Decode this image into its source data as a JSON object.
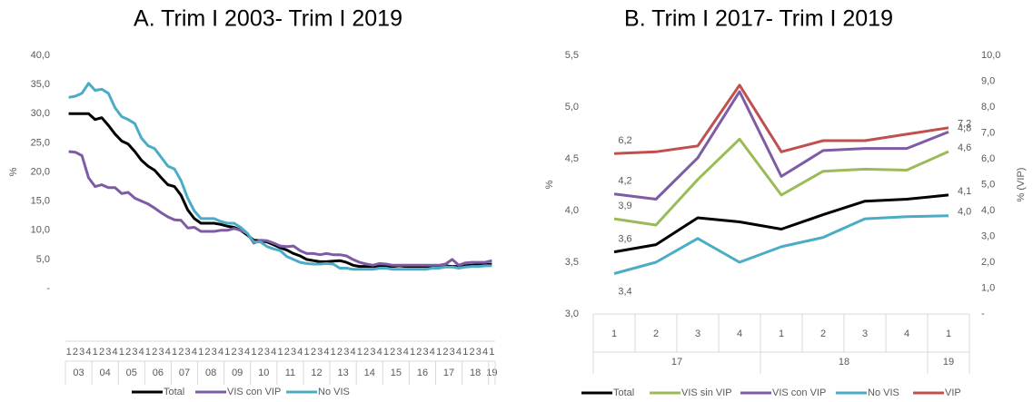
{
  "chart_data": [
    {
      "type": "line",
      "title": "A.  Trim I 2003- Trim I 2019",
      "ylabel": "%",
      "categories": [
        "1",
        "2",
        "3",
        "4",
        "1",
        "2",
        "3",
        "4",
        "1",
        "2",
        "3",
        "4",
        "1",
        "2",
        "3",
        "4",
        "1",
        "2",
        "3",
        "4",
        "1",
        "2",
        "3",
        "4",
        "1",
        "2",
        "3",
        "4",
        "1",
        "2",
        "3",
        "4",
        "1",
        "2",
        "3",
        "4",
        "1",
        "2",
        "3",
        "4",
        "1",
        "2",
        "3",
        "4",
        "1",
        "2",
        "3",
        "4",
        "1",
        "2",
        "3",
        "4",
        "1",
        "2",
        "3",
        "4",
        "1",
        "2",
        "3",
        "4",
        "1",
        "2",
        "3",
        "4",
        "1"
      ],
      "year_labels": [
        "03",
        "04",
        "05",
        "06",
        "07",
        "08",
        "09",
        "10",
        "11",
        "12",
        "13",
        "14",
        "15",
        "16",
        "17",
        "18",
        "19"
      ],
      "series": [
        {
          "name": "Total",
          "color": "#000000",
          "values": [
            30,
            30,
            30,
            30,
            29,
            29.3,
            28,
            26.5,
            25.3,
            24.8,
            23.5,
            22,
            21,
            20.3,
            19,
            17.8,
            17.5,
            16,
            13.5,
            12,
            11.2,
            11.2,
            11.2,
            11,
            10.7,
            10.5,
            10,
            9.2,
            8.3,
            8.2,
            8,
            7.5,
            7,
            6.6,
            6,
            5.6,
            5,
            4.8,
            4.6,
            4.6,
            4.7,
            4.8,
            4.5,
            4,
            3.8,
            3.8,
            3.8,
            3.8,
            3.8,
            3.8,
            3.9,
            3.8,
            3.8,
            3.8,
            3.8,
            3.8,
            3.8,
            3.9,
            3.8,
            3.8,
            3.9,
            4,
            4.1,
            4.1,
            4.2
          ]
        },
        {
          "name": "VIS con VIP",
          "color": "#7e5ca5",
          "values": [
            23.5,
            23.4,
            22.8,
            19,
            17.5,
            17.8,
            17.3,
            17.3,
            16.3,
            16.5,
            15.5,
            15,
            14.5,
            13.8,
            13,
            12.3,
            11.8,
            11.7,
            10.4,
            10.5,
            9.8,
            9.8,
            9.8,
            10,
            10,
            10.3,
            10,
            9.5,
            7.8,
            8.3,
            8.2,
            7.8,
            7.3,
            7.2,
            7.3,
            6.5,
            6,
            6,
            5.8,
            6,
            5.8,
            5.8,
            5.6,
            5,
            4.5,
            4.2,
            4,
            4.3,
            4.2,
            4,
            4,
            4,
            4,
            4,
            4,
            4,
            4,
            4.2,
            5,
            4,
            4.4,
            4.5,
            4.5,
            4.5,
            4.8
          ]
        },
        {
          "name": "No VIS",
          "color": "#4bacc6",
          "values": [
            32.8,
            33,
            33.5,
            35.2,
            34,
            34.2,
            33.5,
            31,
            29.5,
            29,
            28.3,
            25.8,
            24.5,
            24,
            22.5,
            21,
            20.5,
            18.5,
            15.5,
            13.3,
            12,
            12,
            12,
            11.5,
            11.2,
            11.2,
            10.5,
            9.5,
            8,
            8,
            7.2,
            6.8,
            6.5,
            5.5,
            5,
            4.5,
            4.3,
            4.2,
            4.2,
            4.3,
            4.2,
            3.5,
            3.5,
            3.3,
            3.3,
            3.3,
            3.3,
            3.5,
            3.5,
            3.3,
            3.3,
            3.3,
            3.3,
            3.3,
            3.3,
            3.5,
            3.5,
            3.7,
            3.7,
            3.5,
            3.7,
            3.8,
            3.8,
            3.9,
            3.9
          ]
        }
      ],
      "ylim": [
        0,
        40
      ],
      "yticks": [
        {
          "value": 0,
          "label": "-"
        },
        {
          "value": 5,
          "label": "5,0"
        },
        {
          "value": 10,
          "label": "10,0"
        },
        {
          "value": 15,
          "label": "15,0"
        },
        {
          "value": 20,
          "label": "20,0"
        },
        {
          "value": 25,
          "label": "25,0"
        },
        {
          "value": 30,
          "label": "30,0"
        },
        {
          "value": 35,
          "label": "35,0"
        },
        {
          "value": 40,
          "label": "40,0"
        }
      ],
      "legend": "bottom"
    },
    {
      "type": "line",
      "title": "B.  Trim I 2017- Trim I 2019",
      "ylabel": "%",
      "y2label": "% (VIP)",
      "categories": [
        "1",
        "2",
        "3",
        "4",
        "1",
        "2",
        "3",
        "4",
        "1"
      ],
      "year_labels": [
        "17",
        "18",
        "19"
      ],
      "series": [
        {
          "name": "Total",
          "color": "#000000",
          "values": [
            3.6,
            3.67,
            3.93,
            3.89,
            3.82,
            3.96,
            4.09,
            4.11,
            4.15
          ],
          "value_labels": [
            "3,6",
            null,
            null,
            null,
            null,
            null,
            null,
            null,
            "4,1"
          ]
        },
        {
          "name": "VIS sin VIP",
          "color": "#9bbb59",
          "values": [
            3.92,
            3.86,
            4.3,
            4.69,
            4.15,
            4.38,
            4.4,
            4.39,
            4.57
          ],
          "value_labels": [
            "3,9",
            null,
            null,
            null,
            null,
            null,
            null,
            null,
            "4,6"
          ]
        },
        {
          "name": "VIS con VIP",
          "color": "#7e5ca5",
          "values": [
            4.16,
            4.11,
            4.51,
            5.15,
            4.33,
            4.58,
            4.6,
            4.6,
            4.76
          ],
          "value_labels": [
            "4,2",
            null,
            null,
            null,
            null,
            null,
            null,
            null,
            "4,8"
          ]
        },
        {
          "name": "No VIS",
          "color": "#4bacc6",
          "values": [
            3.39,
            3.5,
            3.73,
            3.5,
            3.65,
            3.74,
            3.92,
            3.94,
            3.95
          ],
          "value_labels": [
            "3,4",
            null,
            null,
            null,
            null,
            null,
            null,
            null,
            "4,0"
          ]
        },
        {
          "name": "VIP",
          "color": "#c0504d",
          "axis": "y2",
          "values": [
            6.2,
            6.27,
            6.5,
            8.85,
            6.27,
            6.7,
            6.7,
            6.95,
            7.2
          ],
          "value_labels": [
            "6,2",
            null,
            null,
            null,
            null,
            null,
            null,
            null,
            "7,2"
          ]
        }
      ],
      "ylim": [
        3,
        5.5
      ],
      "yticks": [
        {
          "value": 3,
          "label": "3,0"
        },
        {
          "value": 3.5,
          "label": "3,5"
        },
        {
          "value": 4,
          "label": "4,0"
        },
        {
          "value": 4.5,
          "label": "4,5"
        },
        {
          "value": 5,
          "label": "5,0"
        },
        {
          "value": 5.5,
          "label": "5,5"
        }
      ],
      "y2lim": [
        0,
        10
      ],
      "y2ticks": [
        {
          "value": 0,
          "label": "-"
        },
        {
          "value": 1,
          "label": "1,0"
        },
        {
          "value": 2,
          "label": "2,0"
        },
        {
          "value": 3,
          "label": "3,0"
        },
        {
          "value": 4,
          "label": "4,0"
        },
        {
          "value": 5,
          "label": "5,0"
        },
        {
          "value": 6,
          "label": "6,0"
        },
        {
          "value": 7,
          "label": "7,0"
        },
        {
          "value": 8,
          "label": "8,0"
        },
        {
          "value": 9,
          "label": "9,0"
        },
        {
          "value": 10,
          "label": "10,0"
        }
      ],
      "legend": "bottom"
    }
  ]
}
